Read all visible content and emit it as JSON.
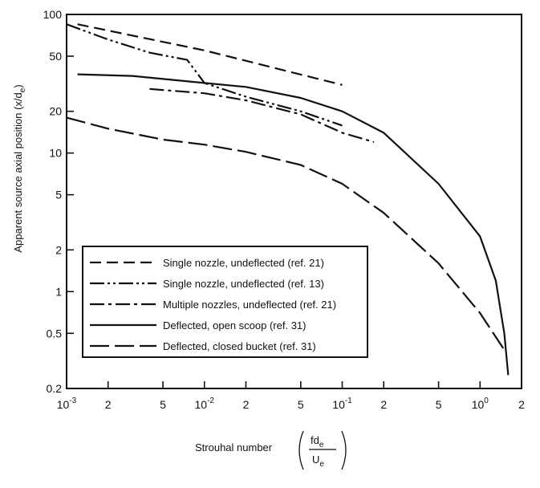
{
  "chart_data": {
    "type": "line",
    "title": "",
    "xlabel": "Strouhal number",
    "xlabel_fraction": {
      "numerator": "fd",
      "numerator_sub": "e",
      "denominator": "U",
      "denominator_sub": "e"
    },
    "ylabel": "Apparent source axial position (x/d",
    "ylabel_sub": "e",
    "ylabel_close": ")",
    "x_scale": "log",
    "y_scale": "log",
    "xlim": [
      0.001,
      2
    ],
    "ylim": [
      0.2,
      100
    ],
    "grid": false,
    "legend_position": "lower-left",
    "x_ticks": [
      {
        "value": 0.001,
        "base": "10",
        "exp": "-3"
      },
      {
        "value": 0.002,
        "label": "2"
      },
      {
        "value": 0.005,
        "label": "5"
      },
      {
        "value": 0.01,
        "base": "10",
        "exp": "-2"
      },
      {
        "value": 0.02,
        "label": "2"
      },
      {
        "value": 0.05,
        "label": "5"
      },
      {
        "value": 0.1,
        "base": "10",
        "exp": "-1"
      },
      {
        "value": 0.2,
        "label": "2"
      },
      {
        "value": 0.5,
        "label": "5"
      },
      {
        "value": 1,
        "base": "10",
        "exp": "0"
      },
      {
        "value": 2,
        "label": "2"
      }
    ],
    "y_ticks": [
      {
        "value": 100,
        "label": "100"
      },
      {
        "value": 50,
        "label": "50"
      },
      {
        "value": 20,
        "label": "20"
      },
      {
        "value": 10,
        "label": "10"
      },
      {
        "value": 5,
        "label": "5"
      },
      {
        "value": 2,
        "label": "2"
      },
      {
        "value": 1,
        "label": "1"
      },
      {
        "value": 0.5,
        "label": "0.5"
      },
      {
        "value": 0.2,
        "label": "0.2"
      }
    ],
    "series": [
      {
        "name": "Single nozzle, undeflected (ref. 21)",
        "style": "dashed",
        "x": [
          0.0012,
          0.01,
          0.1
        ],
        "y": [
          85,
          55,
          31
        ]
      },
      {
        "name": "Single nozzle, undeflected (ref. 13)",
        "style": "dash-dot-dot",
        "x": [
          0.001,
          0.002,
          0.004,
          0.0075,
          0.01,
          0.02,
          0.05,
          0.1
        ],
        "y": [
          85,
          66,
          53,
          47,
          32,
          25.5,
          20,
          15.8
        ]
      },
      {
        "name": "Multiple nozzles, undeflected (ref. 21)",
        "style": "dash-dot",
        "x": [
          0.004,
          0.01,
          0.02,
          0.05,
          0.1,
          0.17
        ],
        "y": [
          29,
          27,
          24,
          19,
          14,
          12
        ]
      },
      {
        "name": "Deflected, open scoop (ref. 31)",
        "style": "solid",
        "x": [
          0.0012,
          0.003,
          0.01,
          0.02,
          0.05,
          0.1,
          0.2,
          0.5,
          1,
          1.3,
          1.5,
          1.6
        ],
        "y": [
          37,
          36,
          32,
          30,
          25,
          20,
          14,
          6,
          2.5,
          1.2,
          0.5,
          0.25
        ]
      },
      {
        "name": "Deflected, closed bucket (ref. 31)",
        "style": "long-dash",
        "x": [
          0.001,
          0.002,
          0.005,
          0.01,
          0.02,
          0.05,
          0.1,
          0.2,
          0.5,
          1,
          1.5
        ],
        "y": [
          18,
          15,
          12.5,
          11.5,
          10.2,
          8.2,
          6,
          3.7,
          1.6,
          0.7,
          0.38
        ]
      }
    ]
  }
}
